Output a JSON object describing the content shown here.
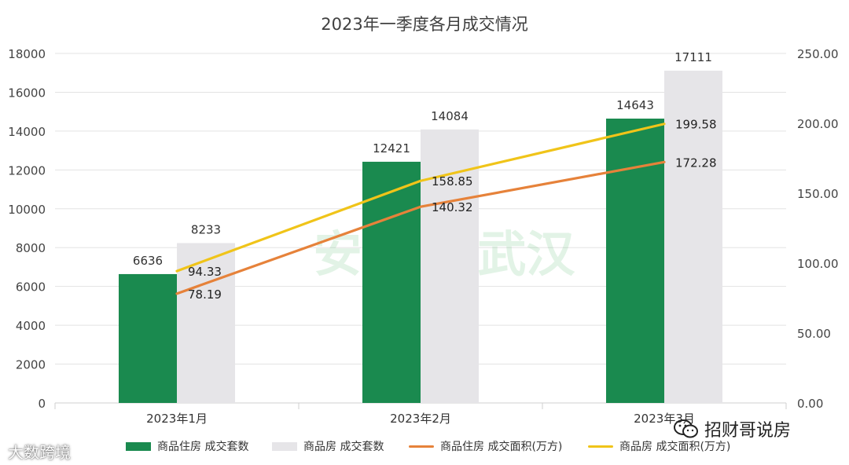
{
  "chart_data": {
    "type": "bar",
    "title": "2023年一季度各月成交情况",
    "categories": [
      "2023年1月",
      "2023年2月",
      "2023年3月"
    ],
    "series": [
      {
        "name": "商品住房 成交套数",
        "kind": "bar",
        "axis": "left",
        "color": "#1a8a4f",
        "values": [
          6636,
          12421,
          14643
        ]
      },
      {
        "name": "商品房 成交套数",
        "kind": "bar",
        "axis": "left",
        "color": "#e6e5e8",
        "values": [
          8233,
          14084,
          17111
        ]
      },
      {
        "name": "商品住房 成交面积(万方)",
        "kind": "line",
        "axis": "right",
        "color": "#e6823a",
        "values": [
          78.19,
          140.32,
          172.28
        ],
        "labels": [
          "78.19",
          "140.32",
          "172.28"
        ]
      },
      {
        "name": "商品房 成交面积(万方)",
        "kind": "line",
        "axis": "right",
        "color": "#f0c419",
        "values": [
          94.33,
          158.85,
          199.58
        ],
        "labels": [
          "94.33",
          "158.85",
          "199.58"
        ]
      }
    ],
    "y_left": {
      "min": 0,
      "max": 18000,
      "step": 2000
    },
    "y_right": {
      "min": 0,
      "max": 250,
      "step": 50,
      "decimals": 2
    },
    "grid": true,
    "legend_position": "bottom"
  },
  "watermarks": {
    "center": "安居客|武汉",
    "bottom_left": "大数跨境",
    "bottom_right": "招财哥说房",
    "bottom_right_icon": "wechat-icon"
  }
}
